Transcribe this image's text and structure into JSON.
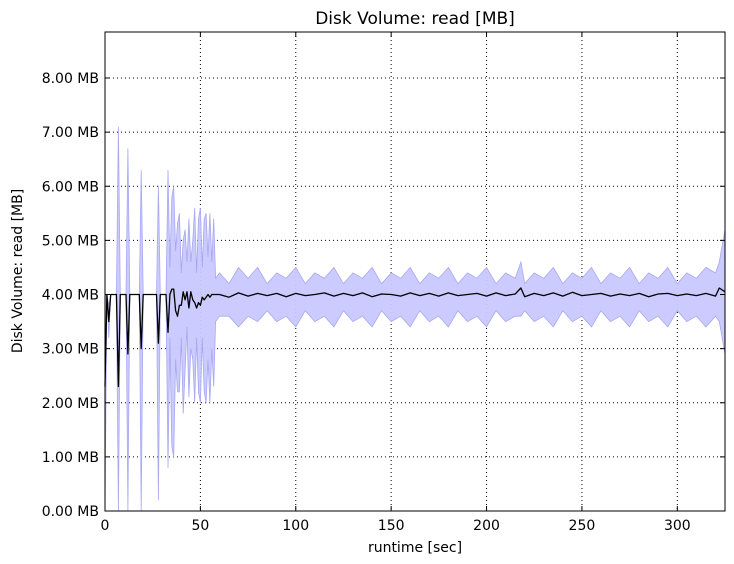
{
  "chart_data": {
    "type": "line",
    "title": "Disk Volume: read [MB]",
    "xlabel": "runtime [sec]",
    "ylabel": "Disk Volume: read [MB]",
    "xlim": [
      0,
      325
    ],
    "ylim": [
      0,
      8.85
    ],
    "grid": true,
    "x_ticks": [
      0,
      50,
      100,
      150,
      200,
      250,
      300
    ],
    "x_tick_labels": [
      "0",
      "50",
      "100",
      "150",
      "200",
      "250",
      "300"
    ],
    "y_ticks": [
      0,
      1,
      2,
      3,
      4,
      5,
      6,
      7,
      8
    ],
    "y_tick_labels": [
      "0.00 MB",
      "1.00 MB",
      "2.00 MB",
      "3.00 MB",
      "4.00 MB",
      "5.00 MB",
      "6.00 MB",
      "7.00 MB",
      "8.00 MB"
    ],
    "colors": {
      "mean_line": "#000000",
      "band_fill": "#c8c8ff",
      "band_edge": "#a8a8f0"
    },
    "series": [
      {
        "kind": "mean_line",
        "x": [
          0,
          1,
          2,
          3,
          4,
          5,
          6,
          7,
          8,
          9,
          10,
          11,
          12,
          13,
          14,
          15,
          16,
          17,
          18,
          19,
          20,
          21,
          22,
          23,
          24,
          25,
          26,
          27,
          28,
          29,
          30,
          31,
          32,
          33,
          34,
          35,
          36,
          37,
          38,
          39,
          40,
          41,
          42,
          43,
          44,
          45,
          46,
          47,
          48,
          49,
          50,
          51,
          52,
          53,
          54,
          55,
          56,
          57,
          58,
          60,
          65,
          70,
          75,
          80,
          85,
          90,
          95,
          100,
          105,
          110,
          115,
          120,
          125,
          130,
          135,
          140,
          145,
          150,
          155,
          160,
          165,
          170,
          175,
          180,
          185,
          190,
          195,
          200,
          205,
          210,
          215,
          218,
          220,
          225,
          230,
          235,
          240,
          245,
          250,
          255,
          260,
          265,
          270,
          275,
          280,
          285,
          290,
          295,
          300,
          305,
          310,
          315,
          320,
          322,
          325
        ],
        "y": [
          2.3,
          4.0,
          3.5,
          4.0,
          4.0,
          4.0,
          4.0,
          2.3,
          4.0,
          4.0,
          4.0,
          4.0,
          2.9,
          4.0,
          4.0,
          4.0,
          4.0,
          4.0,
          4.0,
          3.0,
          4.0,
          4.0,
          4.0,
          4.0,
          4.0,
          4.0,
          4.0,
          4.0,
          3.1,
          4.0,
          4.0,
          4.0,
          4.0,
          3.3,
          4.0,
          4.1,
          4.1,
          3.7,
          3.6,
          3.8,
          3.8,
          4.05,
          3.9,
          4.05,
          3.75,
          4.05,
          3.9,
          3.85,
          3.75,
          3.85,
          3.8,
          3.95,
          3.9,
          3.95,
          4.0,
          3.95,
          4.0,
          4.0,
          4.0,
          4.0,
          3.95,
          4.03,
          3.97,
          4.02,
          3.98,
          4.02,
          3.96,
          4.02,
          3.98,
          4.0,
          4.03,
          3.97,
          4.02,
          3.98,
          4.03,
          3.96,
          4.01,
          4.0,
          3.97,
          4.03,
          3.98,
          4.02,
          3.97,
          4.03,
          3.98,
          4.0,
          4.02,
          3.97,
          4.03,
          3.98,
          4.01,
          4.12,
          3.96,
          4.02,
          3.98,
          4.03,
          3.97,
          4.04,
          3.98,
          4.0,
          4.02,
          3.97,
          4.01,
          3.98,
          4.02,
          3.96,
          4.01,
          4.02,
          3.98,
          4.01,
          3.98,
          4.02,
          3.97,
          4.12,
          4.05
        ]
      },
      {
        "kind": "band",
        "x": [
          0,
          1,
          2,
          3,
          4,
          5,
          6,
          7,
          8,
          9,
          10,
          11,
          12,
          13,
          14,
          15,
          16,
          17,
          18,
          19,
          20,
          21,
          22,
          23,
          24,
          25,
          26,
          27,
          28,
          29,
          30,
          31,
          32,
          33,
          34,
          35,
          36,
          37,
          38,
          39,
          40,
          41,
          42,
          43,
          44,
          45,
          46,
          47,
          48,
          49,
          50,
          51,
          52,
          53,
          54,
          55,
          56,
          57,
          58,
          60,
          65,
          70,
          75,
          80,
          85,
          90,
          95,
          100,
          105,
          110,
          115,
          120,
          125,
          130,
          135,
          140,
          145,
          150,
          155,
          160,
          165,
          170,
          175,
          180,
          185,
          190,
          195,
          200,
          205,
          210,
          215,
          218,
          220,
          225,
          230,
          235,
          240,
          245,
          250,
          255,
          260,
          265,
          270,
          275,
          280,
          285,
          290,
          295,
          300,
          305,
          310,
          315,
          320,
          322,
          325
        ],
        "upper": [
          4.0,
          4.0,
          3.8,
          4.0,
          4.0,
          4.0,
          4.0,
          7.1,
          4.0,
          4.0,
          4.0,
          4.0,
          6.7,
          4.0,
          4.0,
          4.0,
          4.0,
          4.0,
          4.0,
          6.3,
          4.0,
          4.0,
          4.0,
          4.0,
          4.0,
          4.0,
          4.0,
          4.0,
          6.0,
          4.0,
          4.0,
          4.0,
          4.0,
          6.3,
          4.5,
          5.8,
          6.0,
          4.8,
          5.3,
          5.5,
          4.4,
          5.0,
          5.2,
          4.6,
          5.4,
          4.6,
          5.0,
          5.6,
          4.4,
          5.4,
          5.6,
          4.5,
          5.4,
          5.5,
          4.7,
          5.5,
          4.6,
          5.4,
          4.3,
          4.4,
          4.2,
          4.5,
          4.3,
          4.5,
          4.2,
          4.4,
          4.3,
          4.5,
          4.2,
          4.4,
          4.3,
          4.5,
          4.2,
          4.4,
          4.3,
          4.5,
          4.2,
          4.4,
          4.3,
          4.5,
          4.2,
          4.4,
          4.3,
          4.5,
          4.2,
          4.4,
          4.3,
          4.5,
          4.2,
          4.4,
          4.3,
          4.6,
          4.2,
          4.4,
          4.3,
          4.5,
          4.2,
          4.4,
          4.3,
          4.5,
          4.2,
          4.4,
          4.3,
          4.5,
          4.2,
          4.4,
          4.3,
          4.5,
          4.2,
          4.4,
          4.3,
          4.5,
          4.4,
          4.6,
          5.2
        ],
        "lower": [
          0.0,
          4.0,
          3.2,
          4.0,
          4.0,
          4.0,
          4.0,
          0.0,
          4.0,
          4.0,
          4.0,
          4.0,
          0.0,
          4.0,
          4.0,
          4.0,
          4.0,
          4.0,
          4.0,
          0.0,
          4.0,
          4.0,
          4.0,
          4.0,
          4.0,
          4.0,
          4.0,
          4.0,
          0.2,
          4.0,
          4.0,
          4.0,
          4.0,
          0.8,
          3.2,
          1.2,
          1.0,
          2.8,
          2.2,
          2.2,
          3.2,
          1.8,
          2.6,
          3.4,
          2.1,
          3.0,
          2.8,
          2.0,
          3.2,
          2.2,
          2.0,
          3.2,
          2.2,
          2.0,
          2.8,
          2.0,
          3.0,
          2.3,
          3.5,
          3.6,
          3.6,
          3.4,
          3.6,
          3.5,
          3.7,
          3.5,
          3.6,
          3.4,
          3.7,
          3.5,
          3.6,
          3.4,
          3.7,
          3.5,
          3.6,
          3.4,
          3.7,
          3.5,
          3.6,
          3.4,
          3.7,
          3.5,
          3.6,
          3.4,
          3.7,
          3.5,
          3.6,
          3.4,
          3.7,
          3.5,
          3.6,
          3.6,
          3.7,
          3.5,
          3.6,
          3.4,
          3.7,
          3.5,
          3.6,
          3.4,
          3.7,
          3.5,
          3.6,
          3.4,
          3.7,
          3.5,
          3.6,
          3.4,
          3.7,
          3.5,
          3.6,
          3.4,
          3.6,
          3.5,
          2.9
        ]
      }
    ]
  }
}
